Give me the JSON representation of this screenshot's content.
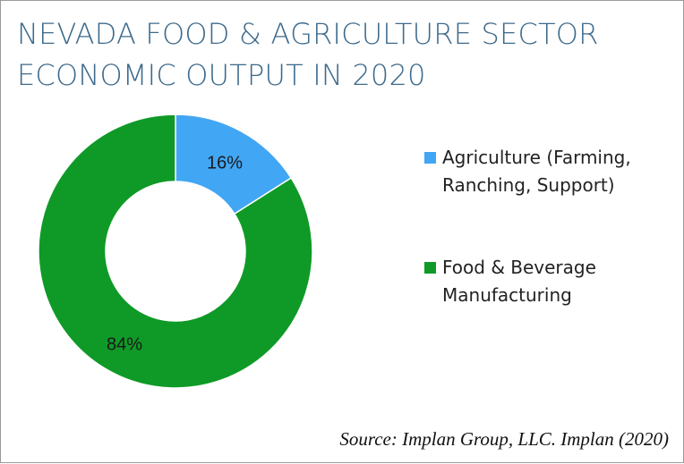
{
  "title": "NEVADA FOOD & AGRICULTURE SECTOR\nECONOMIC OUTPUT IN 2020",
  "source": "Source: Implan Group, LLC. Implan (2020)",
  "chart_data": {
    "type": "pie",
    "donut": true,
    "title": "NEVADA FOOD & AGRICULTURE SECTOR ECONOMIC OUTPUT IN 2020",
    "categories": [
      "Agriculture (Farming, Ranching, Support)",
      "Food & Beverage Manufacturing"
    ],
    "values": [
      16,
      84
    ],
    "data_labels": [
      "16%",
      "84%"
    ],
    "colors": [
      "#41a6f4",
      "#0f9a27"
    ],
    "legend_position": "right"
  }
}
